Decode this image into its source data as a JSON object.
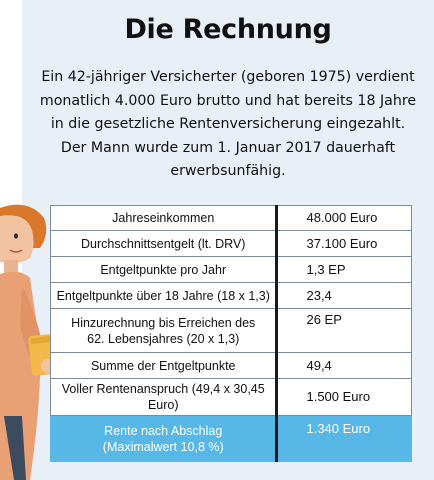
{
  "title": "Die Rechnung",
  "intro": {
    "line1": "Ein 42-jähriger Versicherter (geboren 1975) verdient",
    "line2": "monatlich 4.000 Euro brutto und hat bereits 18 Jahre",
    "line3": "in die gesetzliche Rentenversicherung eingezahlt.",
    "line4": "Der Mann wurde zum 1. Januar 2017 dauerhaft",
    "line5": "erwerbsunfähig."
  },
  "table": {
    "rows": [
      {
        "label": "Jahreseinkommen",
        "value": "48.000 Euro"
      },
      {
        "label": "Durchschnittsentgelt (lt. DRV)",
        "value": "37.100 Euro"
      },
      {
        "label": "Entgeltpunkte pro Jahr",
        "value": "1,3 EP"
      },
      {
        "label": "Entgeltpunkte über 18 Jahre (18 x 1,3)",
        "value": "23,4"
      },
      {
        "label_line1": "Hinzurechnung bis Erreichen des",
        "label_line2": "62. Lebensjahres (20 x 1,3)",
        "value": "26 EP"
      },
      {
        "label": "Summe der Entgeltpunkte",
        "value": "49,4"
      },
      {
        "label": "Voller Rentenanspruch (49,4 x 30,45 Euro)",
        "value": "1.500 Euro"
      },
      {
        "label_line1": "Rente nach Abschlag",
        "label_line2": "(Maximalwert 10,8 %)",
        "value": "1.340 Euro"
      }
    ]
  },
  "colors": {
    "panel_background": "#e9eff7",
    "highlight_row": "#57b8e8",
    "figure_shirt": "#e9a074",
    "figure_hair": "#d9772c",
    "figure_folder": "#f3b94a"
  }
}
